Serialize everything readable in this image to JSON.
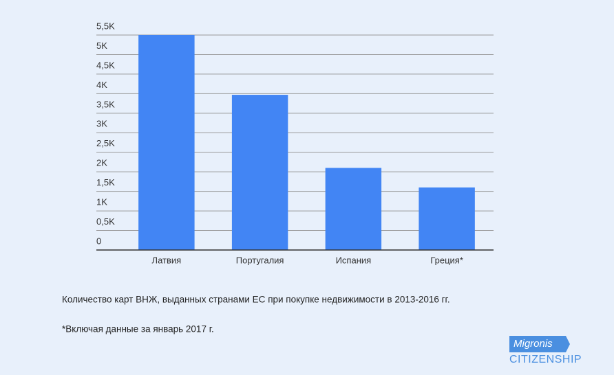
{
  "chart_data": {
    "type": "bar",
    "categories": [
      "Латвия",
      "Португалия",
      "Испания",
      "Греция*"
    ],
    "values": [
      5500,
      3970,
      2100,
      1600
    ],
    "color": "#4285f4",
    "ylim": [
      0,
      5500
    ],
    "yticks": [
      0,
      {
        "value": 500,
        "label": "0,5K"
      },
      {
        "value": 1000,
        "label": "1K"
      },
      {
        "value": 1500,
        "label": "1,5K"
      },
      {
        "value": 2000,
        "label": "2K"
      },
      {
        "value": 2500,
        "label": "2,5K"
      },
      {
        "value": 3000,
        "label": "3K"
      },
      {
        "value": 3500,
        "label": "3,5K"
      },
      {
        "value": 4000,
        "label": "4K"
      },
      {
        "value": 4500,
        "label": "4,5K"
      },
      {
        "value": 5000,
        "label": "5K"
      },
      {
        "value": 5500,
        "label": "5,5K"
      }
    ],
    "grid": true,
    "caption": "Количество карт ВНЖ, выданных странами ЕС при покупке недвижимости в 2013-2016 гг.",
    "note": "*Включая данные за январь 2017 г."
  },
  "logo": {
    "top": "Migronis",
    "bottom": "CITIZENSHIP"
  }
}
